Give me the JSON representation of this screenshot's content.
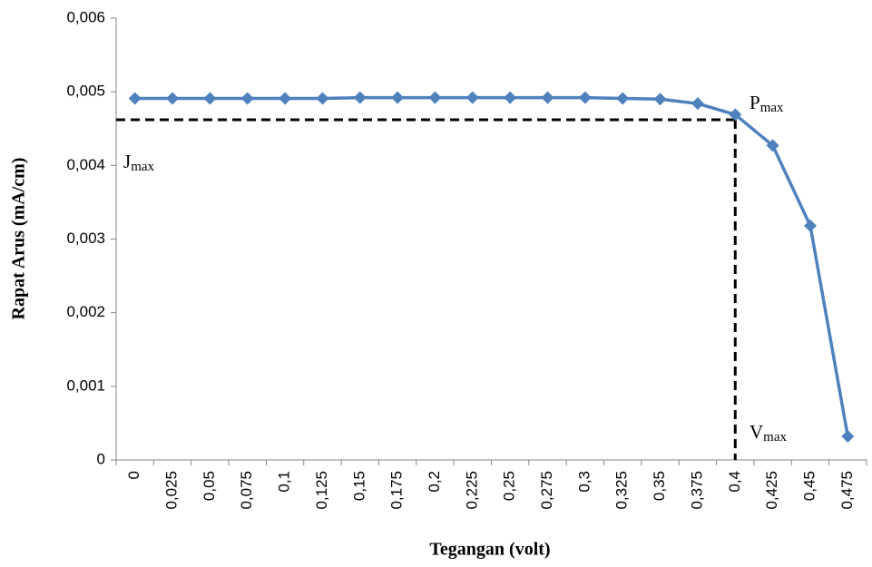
{
  "chart_data": {
    "type": "line",
    "x_axis_label": "Tegangan (volt)",
    "y_axis_label": "Rapat Arus (mA/cm)",
    "categories": [
      "0",
      "0,025",
      "0,05",
      "0,075",
      "0,1",
      "0,125",
      "0,15",
      "0,175",
      "0,2",
      "0,225",
      "0,25",
      "0,275",
      "0,3",
      "0,325",
      "0,35",
      "0,375",
      "0,4",
      "0,425",
      "0,45",
      "0,475"
    ],
    "series": [
      {
        "color": "#4f81bd",
        "values": [
          0.00491,
          0.00491,
          0.00491,
          0.00491,
          0.00491,
          0.00491,
          0.00492,
          0.00492,
          0.00492,
          0.00492,
          0.00492,
          0.00492,
          0.00492,
          0.00491,
          0.0049,
          0.00484,
          0.00469,
          0.00427,
          0.00318,
          0.00032
        ]
      }
    ],
    "ylim": [
      0,
      0.006
    ],
    "yticks": [
      0,
      {
        "value": 0.001,
        "label": "0,001"
      },
      {
        "value": 0.002,
        "label": "0,002"
      },
      {
        "value": 0.003,
        "label": "0,003"
      },
      {
        "value": 0.004,
        "label": "0,004"
      },
      {
        "value": 0.005,
        "label": "0,005"
      },
      {
        "value": 0.006,
        "label": "0,006"
      }
    ],
    "reference_lines": {
      "y": 0.00462,
      "x_category": "0,4"
    },
    "annotations": [
      {
        "text": "P",
        "sub": "max"
      },
      {
        "text": "J",
        "sub": "max"
      },
      {
        "text": "V",
        "sub": "max"
      }
    ]
  }
}
